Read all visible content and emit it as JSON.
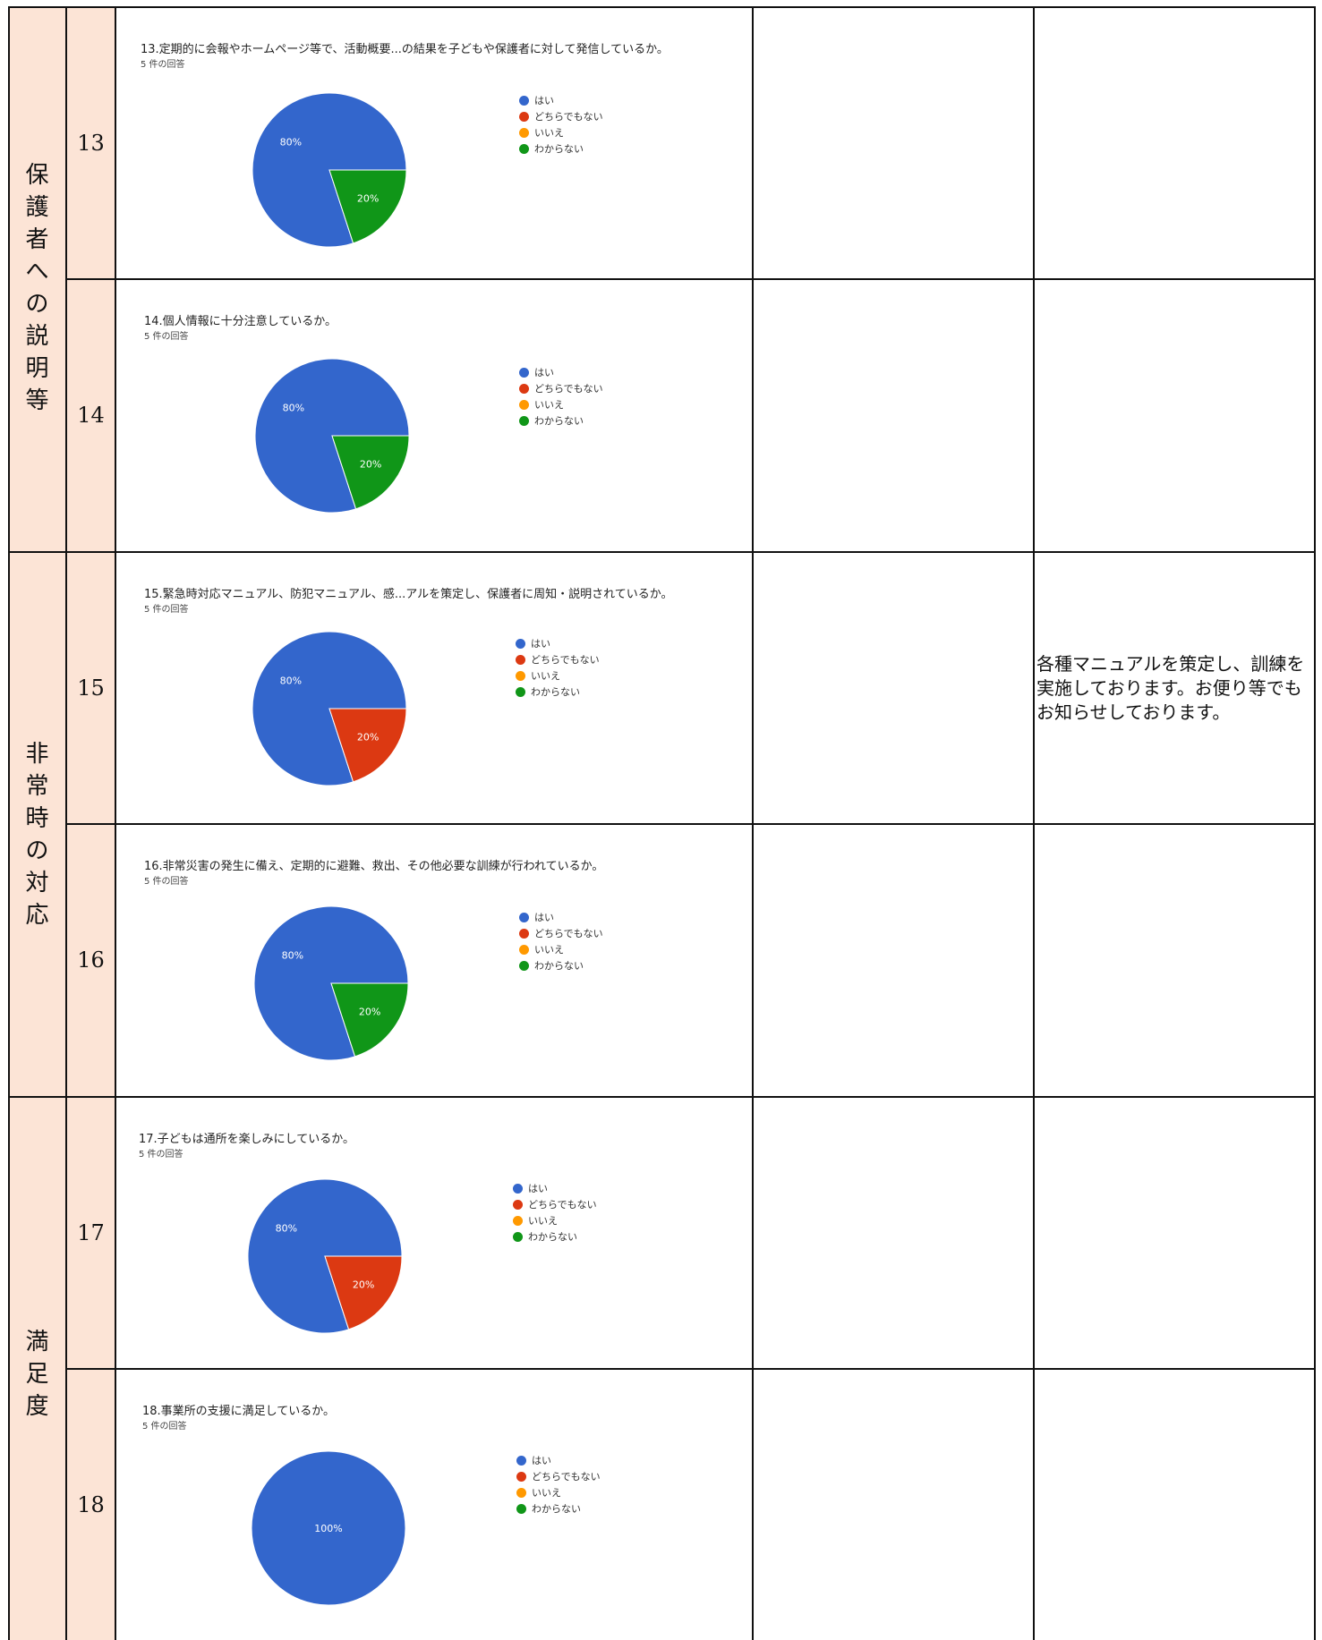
{
  "legend": {
    "labels": [
      "はい",
      "どちらでもない",
      "いいえ",
      "わからない"
    ],
    "colors": [
      "#3366cc",
      "#dc3912",
      "#ff9900",
      "#109618"
    ]
  },
  "categories": [
    {
      "chars": [
        "保",
        "護",
        "者",
        "へ",
        "の",
        "説",
        "明",
        "等"
      ]
    },
    {
      "chars": [
        "非",
        "常",
        "時",
        "の",
        "対",
        "応"
      ]
    },
    {
      "chars": [
        "満",
        "足",
        "度"
      ]
    }
  ],
  "rows": [
    {
      "number": "13",
      "question": "13.定期的に会報やホームページ等で、活動概要...の結果を子どもや保護者に対して発信しているか。",
      "responses": "5 件の回答",
      "comment": ""
    },
    {
      "number": "14",
      "question": "14.個人情報に十分注意しているか。",
      "responses": "5 件の回答",
      "comment": ""
    },
    {
      "number": "15",
      "question": "15.緊急時対応マニュアル、防犯マニュアル、感...アルを策定し、保護者に周知・説明されているか。",
      "responses": "5 件の回答",
      "comment": "各種マニュアルを策定し、訓練を実施しております。お便り等でもお知らせしております。"
    },
    {
      "number": "16",
      "question": "16.非常災害の発生に備え、定期的に避難、救出、その他必要な訓練が行われているか。",
      "responses": "5 件の回答",
      "comment": ""
    },
    {
      "number": "17",
      "question": "17.子どもは通所を楽しみにしているか。",
      "responses": "5 件の回答",
      "comment": ""
    },
    {
      "number": "18",
      "question": "18.事業所の支援に満足しているか。",
      "responses": "5 件の回答",
      "comment": ""
    }
  ],
  "chart_data": [
    {
      "type": "pie",
      "title": "13.定期的に会報やホームページ等で、活動概要...の結果を子どもや保護者に対して発信しているか。",
      "labels": [
        "はい",
        "どちらでもない",
        "いいえ",
        "わからない"
      ],
      "values": [
        80,
        0,
        0,
        20
      ],
      "value_labels": [
        "80%",
        "",
        "",
        "20%"
      ]
    },
    {
      "type": "pie",
      "title": "14.個人情報に十分注意しているか。",
      "labels": [
        "はい",
        "どちらでもない",
        "いいえ",
        "わからない"
      ],
      "values": [
        80,
        0,
        0,
        20
      ],
      "value_labels": [
        "80%",
        "",
        "",
        "20%"
      ]
    },
    {
      "type": "pie",
      "title": "15.緊急時対応マニュアル、防犯マニュアル、感...アルを策定し、保護者に周知・説明されているか。",
      "labels": [
        "はい",
        "どちらでもない",
        "いいえ",
        "わからない"
      ],
      "values": [
        80,
        20,
        0,
        0
      ],
      "value_labels": [
        "80%",
        "20%",
        "",
        ""
      ]
    },
    {
      "type": "pie",
      "title": "16.非常災害の発生に備え、定期的に避難、救出、その他必要な訓練が行われているか。",
      "labels": [
        "はい",
        "どちらでもない",
        "いいえ",
        "わからない"
      ],
      "values": [
        80,
        0,
        0,
        20
      ],
      "value_labels": [
        "80%",
        "",
        "",
        "20%"
      ]
    },
    {
      "type": "pie",
      "title": "17.子どもは通所を楽しみにしているか。",
      "labels": [
        "はい",
        "どちらでもない",
        "いいえ",
        "わからない"
      ],
      "values": [
        80,
        20,
        0,
        0
      ],
      "value_labels": [
        "80%",
        "20%",
        "",
        ""
      ]
    },
    {
      "type": "pie",
      "title": "18.事業所の支援に満足しているか。",
      "labels": [
        "はい",
        "どちらでもない",
        "いいえ",
        "わからない"
      ],
      "values": [
        100,
        0,
        0,
        0
      ],
      "value_labels": [
        "100%",
        "",
        "",
        ""
      ]
    }
  ]
}
